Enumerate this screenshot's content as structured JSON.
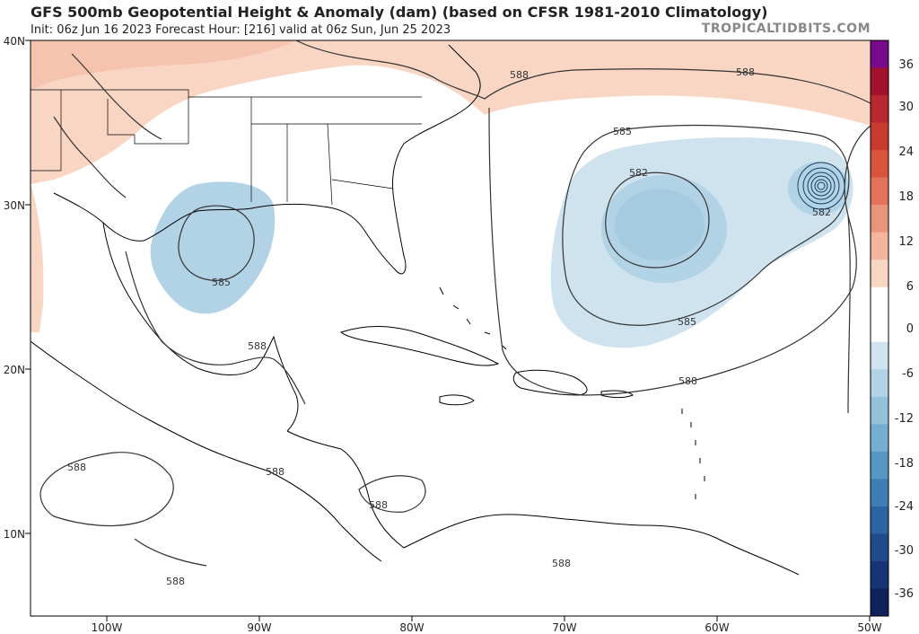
{
  "header": {
    "title": "GFS 500mb Geopotential Height & Anomaly (dam) (based on CFSR 1981-2010 Climatology)",
    "subtitle": "Init: 06z Jun 16 2023   Forecast Hour: [216]   valid at 06z Sun, Jun 25 2023",
    "brand": "TROPICALTIDBITS.COM"
  },
  "axes": {
    "lat_labels": [
      "40N",
      "30N",
      "20N",
      "10N"
    ],
    "lon_labels": [
      "100W",
      "90W",
      "80W",
      "70W",
      "60W",
      "50W"
    ]
  },
  "contour_labels": [
    {
      "text": "588",
      "region": "northeast-atlantic-upper"
    },
    {
      "text": "588",
      "region": "north-atlantic-upper-right"
    },
    {
      "text": "585",
      "region": "atlantic-low-north"
    },
    {
      "text": "582",
      "region": "atlantic-low-center"
    },
    {
      "text": "582",
      "region": "atlantic-small-low"
    },
    {
      "text": "585",
      "region": "atlantic-low-south"
    },
    {
      "text": "585",
      "region": "gulf-of-mexico-low"
    },
    {
      "text": "588",
      "region": "yucatan"
    },
    {
      "text": "588",
      "region": "caribbean-east"
    },
    {
      "text": "588",
      "region": "eastern-pacific"
    },
    {
      "text": "588",
      "region": "central-america"
    },
    {
      "text": "588",
      "region": "caribbean-west"
    },
    {
      "text": "588",
      "region": "south-america"
    },
    {
      "text": "588",
      "region": "eastern-pacific-south"
    }
  ],
  "colorbar": {
    "labels": [
      "36",
      "30",
      "24",
      "18",
      "12",
      "6",
      "0",
      "-6",
      "-12",
      "-18",
      "-24",
      "-30",
      "-36"
    ],
    "colors": [
      "#7a0a8c",
      "#a3122c",
      "#b9282f",
      "#c93b2e",
      "#d8553c",
      "#e2735a",
      "#eb947c",
      "#f4b59e",
      "#f9d6c4",
      "#ffffff",
      "#ffffff",
      "#cfe3ef",
      "#b2d3e6",
      "#94c1dc",
      "#76aed1",
      "#5797c4",
      "#3f7eb5",
      "#2c63a2",
      "#1f4a8c",
      "#173574",
      "#10225c"
    ]
  }
}
